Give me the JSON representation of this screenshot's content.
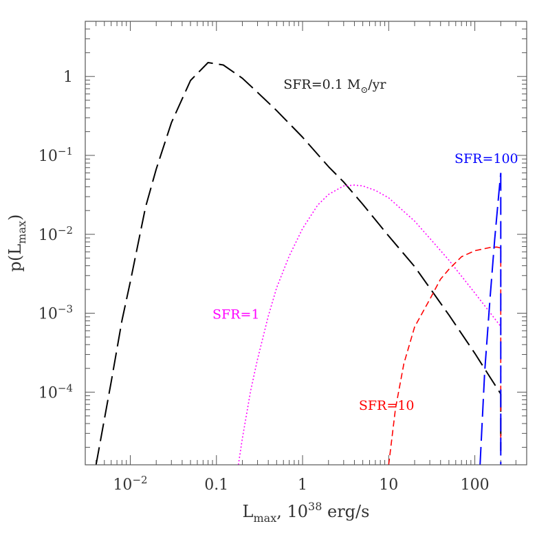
{
  "chart_data": {
    "type": "line",
    "xscale": "log",
    "yscale": "log",
    "xlim": [
      0.003,
      400
    ],
    "ylim": [
      1.2e-05,
      5
    ],
    "xlabel": {
      "main": "L",
      "sub": "max",
      "rest": ", 10",
      "sup": "38",
      "unit": " erg/s"
    },
    "ylabel": {
      "main": "p(L",
      "sub": "max",
      "close": ")"
    },
    "x_ticks": [
      {
        "value": 0.01,
        "base": "10",
        "exp": "−2"
      },
      {
        "value": 0.1,
        "text": "0.1"
      },
      {
        "value": 1,
        "text": "1"
      },
      {
        "value": 10,
        "text": "10"
      },
      {
        "value": 100,
        "text": "100"
      }
    ],
    "y_ticks": [
      {
        "value": 1,
        "text": "1"
      },
      {
        "value": 0.1,
        "base": "10",
        "exp": "−1"
      },
      {
        "value": 0.01,
        "base": "10",
        "exp": "−2"
      },
      {
        "value": 0.001,
        "base": "10",
        "exp": "−3"
      },
      {
        "value": 0.0001,
        "base": "10",
        "exp": "−4"
      }
    ],
    "series": [
      {
        "id": "sfr01",
        "color": "#000000",
        "dash": "26,9",
        "width": 2,
        "x": [
          0.004,
          0.006,
          0.008,
          0.01,
          0.015,
          0.02,
          0.03,
          0.05,
          0.08,
          0.12,
          0.2,
          0.3,
          0.5,
          1,
          2,
          3,
          5,
          10,
          20,
          50,
          100,
          150,
          200
        ],
        "y": [
          1.2e-05,
          0.000135,
          0.00081,
          0.0025,
          0.022,
          0.067,
          0.26,
          0.89,
          1.5,
          1.4,
          0.95,
          0.63,
          0.37,
          0.17,
          0.072,
          0.046,
          0.024,
          0.0095,
          0.0039,
          0.00095,
          0.00031,
          0.000155,
          9.5e-05
        ]
      },
      {
        "id": "sfr01-drop",
        "color": "#000000",
        "dash": "26,9",
        "width": 2,
        "x": [
          200,
          200
        ],
        "y": [
          9.5e-05,
          1.8e-05
        ]
      },
      {
        "id": "sfr1",
        "color": "#ff00ff",
        "dash": "2,3",
        "width": 1.6,
        "x": [
          0.18,
          0.2,
          0.25,
          0.3,
          0.4,
          0.5,
          0.7,
          1,
          1.5,
          2,
          3,
          4,
          5,
          7,
          10,
          20,
          30,
          50,
          100,
          200
        ],
        "y": [
          1.2e-05,
          2.6e-05,
          0.000105,
          0.00026,
          0.00092,
          0.0021,
          0.0053,
          0.0118,
          0.0235,
          0.032,
          0.041,
          0.042,
          0.041,
          0.036,
          0.029,
          0.0147,
          0.0089,
          0.0047,
          0.0018,
          0.00068
        ]
      },
      {
        "id": "sfr10",
        "color": "#ff0000",
        "dash": "9,5",
        "width": 1.6,
        "x": [
          10,
          12,
          15,
          20,
          30,
          40,
          50,
          70,
          100,
          150,
          180,
          200,
          200
        ],
        "y": [
          1.2e-05,
          6.2e-05,
          0.00023,
          0.00067,
          0.0015,
          0.0027,
          0.0036,
          0.0052,
          0.0062,
          0.0068,
          0.0069,
          0.0067,
          1.8e-05
        ]
      },
      {
        "id": "sfr100-left",
        "color": "#0000ff",
        "dash": "26,9",
        "width": 2,
        "x": [
          115,
          130,
          150,
          170,
          190,
          200
        ],
        "y": [
          1.2e-05,
          0.00018,
          0.0015,
          0.0085,
          0.033,
          0.06
        ]
      },
      {
        "id": "sfr100-right",
        "color": "#0000ff",
        "dash": "26,9",
        "width": 2,
        "x": [
          200,
          200
        ],
        "y": [
          0.06,
          1.2e-05
        ]
      }
    ],
    "annotations": [
      {
        "id": "sfr01",
        "parts": [
          "SFR=0.1 M",
          "⊙",
          "/yr"
        ],
        "color": "#222222",
        "x": 0.6,
        "y": 0.7
      },
      {
        "id": "sfr1",
        "parts": [
          "SFR=1"
        ],
        "color": "#ff00ff",
        "x": 0.09,
        "y": 0.00085
      },
      {
        "id": "sfr10",
        "parts": [
          "SFR=10"
        ],
        "color": "#ff0000",
        "x": 4.5,
        "y": 6e-05
      },
      {
        "id": "sfr100",
        "parts": [
          "SFR=100"
        ],
        "color": "#0000ff",
        "x": 58,
        "y": 0.08
      }
    ]
  }
}
